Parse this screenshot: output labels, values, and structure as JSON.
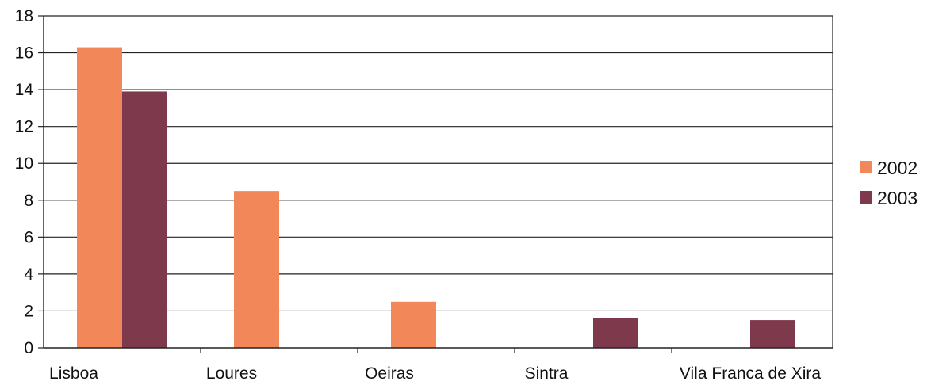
{
  "chart_data": {
    "type": "bar",
    "categories": [
      "Lisboa",
      "Loures",
      "Oeiras",
      "Sintra",
      "Vila Franca de Xira"
    ],
    "series": [
      {
        "name": "2002",
        "values": [
          16.3,
          8.5,
          2.5,
          0,
          0
        ],
        "color": "#F2875A"
      },
      {
        "name": "2003",
        "values": [
          13.9,
          0,
          0,
          1.6,
          1.5
        ],
        "color": "#7E3A4C"
      }
    ],
    "ylim": [
      0,
      18
    ],
    "yticks": [
      "0",
      "2",
      "4",
      "6",
      "8",
      "10",
      "12",
      "14",
      "16",
      "18"
    ],
    "grid": true,
    "legend_position": "right",
    "title": "",
    "xlabel": "",
    "ylabel": ""
  }
}
